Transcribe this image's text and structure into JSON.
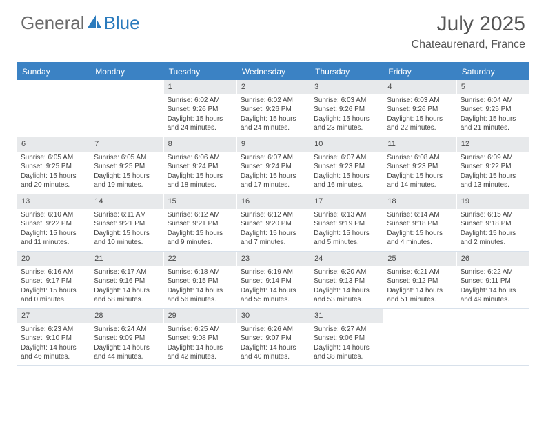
{
  "brand": {
    "name1": "General",
    "name2": "Blue",
    "color1": "#6b6b6b",
    "color2": "#2b7bbd"
  },
  "title": "July 2025",
  "location": "Chateaurenard, France",
  "colors": {
    "header_bar": "#3b82c4",
    "header_text": "#ffffff",
    "daynum_bg": "#e7e9eb",
    "text": "#444444",
    "title_text": "#555555"
  },
  "days_of_week": [
    "Sunday",
    "Monday",
    "Tuesday",
    "Wednesday",
    "Thursday",
    "Friday",
    "Saturday"
  ],
  "weeks": [
    [
      null,
      null,
      {
        "n": "1",
        "sunrise": "6:02 AM",
        "sunset": "9:26 PM",
        "daylight": "15 hours and 24 minutes."
      },
      {
        "n": "2",
        "sunrise": "6:02 AM",
        "sunset": "9:26 PM",
        "daylight": "15 hours and 24 minutes."
      },
      {
        "n": "3",
        "sunrise": "6:03 AM",
        "sunset": "9:26 PM",
        "daylight": "15 hours and 23 minutes."
      },
      {
        "n": "4",
        "sunrise": "6:03 AM",
        "sunset": "9:26 PM",
        "daylight": "15 hours and 22 minutes."
      },
      {
        "n": "5",
        "sunrise": "6:04 AM",
        "sunset": "9:25 PM",
        "daylight": "15 hours and 21 minutes."
      }
    ],
    [
      {
        "n": "6",
        "sunrise": "6:05 AM",
        "sunset": "9:25 PM",
        "daylight": "15 hours and 20 minutes."
      },
      {
        "n": "7",
        "sunrise": "6:05 AM",
        "sunset": "9:25 PM",
        "daylight": "15 hours and 19 minutes."
      },
      {
        "n": "8",
        "sunrise": "6:06 AM",
        "sunset": "9:24 PM",
        "daylight": "15 hours and 18 minutes."
      },
      {
        "n": "9",
        "sunrise": "6:07 AM",
        "sunset": "9:24 PM",
        "daylight": "15 hours and 17 minutes."
      },
      {
        "n": "10",
        "sunrise": "6:07 AM",
        "sunset": "9:23 PM",
        "daylight": "15 hours and 16 minutes."
      },
      {
        "n": "11",
        "sunrise": "6:08 AM",
        "sunset": "9:23 PM",
        "daylight": "15 hours and 14 minutes."
      },
      {
        "n": "12",
        "sunrise": "6:09 AM",
        "sunset": "9:22 PM",
        "daylight": "15 hours and 13 minutes."
      }
    ],
    [
      {
        "n": "13",
        "sunrise": "6:10 AM",
        "sunset": "9:22 PM",
        "daylight": "15 hours and 11 minutes."
      },
      {
        "n": "14",
        "sunrise": "6:11 AM",
        "sunset": "9:21 PM",
        "daylight": "15 hours and 10 minutes."
      },
      {
        "n": "15",
        "sunrise": "6:12 AM",
        "sunset": "9:21 PM",
        "daylight": "15 hours and 9 minutes."
      },
      {
        "n": "16",
        "sunrise": "6:12 AM",
        "sunset": "9:20 PM",
        "daylight": "15 hours and 7 minutes."
      },
      {
        "n": "17",
        "sunrise": "6:13 AM",
        "sunset": "9:19 PM",
        "daylight": "15 hours and 5 minutes."
      },
      {
        "n": "18",
        "sunrise": "6:14 AM",
        "sunset": "9:18 PM",
        "daylight": "15 hours and 4 minutes."
      },
      {
        "n": "19",
        "sunrise": "6:15 AM",
        "sunset": "9:18 PM",
        "daylight": "15 hours and 2 minutes."
      }
    ],
    [
      {
        "n": "20",
        "sunrise": "6:16 AM",
        "sunset": "9:17 PM",
        "daylight": "15 hours and 0 minutes."
      },
      {
        "n": "21",
        "sunrise": "6:17 AM",
        "sunset": "9:16 PM",
        "daylight": "14 hours and 58 minutes."
      },
      {
        "n": "22",
        "sunrise": "6:18 AM",
        "sunset": "9:15 PM",
        "daylight": "14 hours and 56 minutes."
      },
      {
        "n": "23",
        "sunrise": "6:19 AM",
        "sunset": "9:14 PM",
        "daylight": "14 hours and 55 minutes."
      },
      {
        "n": "24",
        "sunrise": "6:20 AM",
        "sunset": "9:13 PM",
        "daylight": "14 hours and 53 minutes."
      },
      {
        "n": "25",
        "sunrise": "6:21 AM",
        "sunset": "9:12 PM",
        "daylight": "14 hours and 51 minutes."
      },
      {
        "n": "26",
        "sunrise": "6:22 AM",
        "sunset": "9:11 PM",
        "daylight": "14 hours and 49 minutes."
      }
    ],
    [
      {
        "n": "27",
        "sunrise": "6:23 AM",
        "sunset": "9:10 PM",
        "daylight": "14 hours and 46 minutes."
      },
      {
        "n": "28",
        "sunrise": "6:24 AM",
        "sunset": "9:09 PM",
        "daylight": "14 hours and 44 minutes."
      },
      {
        "n": "29",
        "sunrise": "6:25 AM",
        "sunset": "9:08 PM",
        "daylight": "14 hours and 42 minutes."
      },
      {
        "n": "30",
        "sunrise": "6:26 AM",
        "sunset": "9:07 PM",
        "daylight": "14 hours and 40 minutes."
      },
      {
        "n": "31",
        "sunrise": "6:27 AM",
        "sunset": "9:06 PM",
        "daylight": "14 hours and 38 minutes."
      },
      null,
      null
    ]
  ],
  "labels": {
    "sunrise": "Sunrise:",
    "sunset": "Sunset:",
    "daylight": "Daylight:"
  }
}
